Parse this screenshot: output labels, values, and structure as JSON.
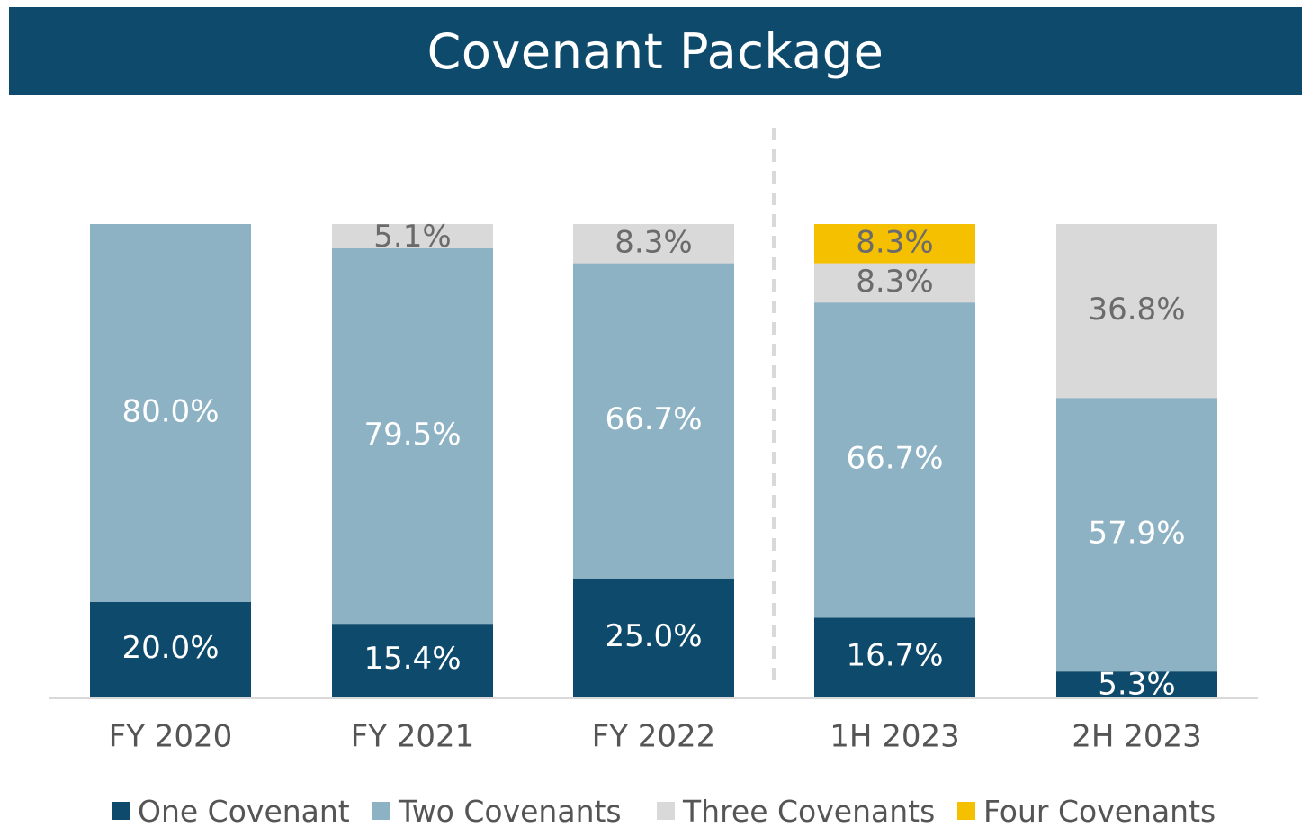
{
  "title": "Covenant Package",
  "chart_data": {
    "type": "bar",
    "stacked": true,
    "categories": [
      "FY 2020",
      "FY 2021",
      "FY 2022",
      "1H 2023",
      "2H 2023"
    ],
    "ylim": [
      0,
      100
    ],
    "grid": false,
    "legend_position": "bottom",
    "divider_after_category": "FY 2022",
    "series": [
      {
        "name": "One Covenant",
        "color": "#0d4a6b",
        "label_color": "#ffffff",
        "values": [
          20.0,
          15.4,
          25.0,
          16.7,
          5.3
        ],
        "labels": [
          "20.0%",
          "15.4%",
          "25.0%",
          "16.7%",
          "5.3%"
        ]
      },
      {
        "name": "Two Covenants",
        "color": "#8db2c4",
        "label_color": "#ffffff",
        "values": [
          80.0,
          79.5,
          66.7,
          66.7,
          57.9
        ],
        "labels": [
          "80.0%",
          "79.5%",
          "66.7%",
          "66.7%",
          "57.9%"
        ]
      },
      {
        "name": "Three Covenants",
        "color": "#d9d9d9",
        "label_color": "#6b6b6b",
        "values": [
          0,
          5.1,
          8.3,
          8.3,
          36.8
        ],
        "labels": [
          "",
          "5.1%",
          "8.3%",
          "8.3%",
          "36.8%"
        ]
      },
      {
        "name": "Four Covenants",
        "color": "#f5c000",
        "label_color": "#6b6b6b",
        "values": [
          0,
          0,
          0,
          8.3,
          0
        ],
        "labels": [
          "",
          "",
          "",
          "8.3%",
          ""
        ]
      }
    ]
  }
}
